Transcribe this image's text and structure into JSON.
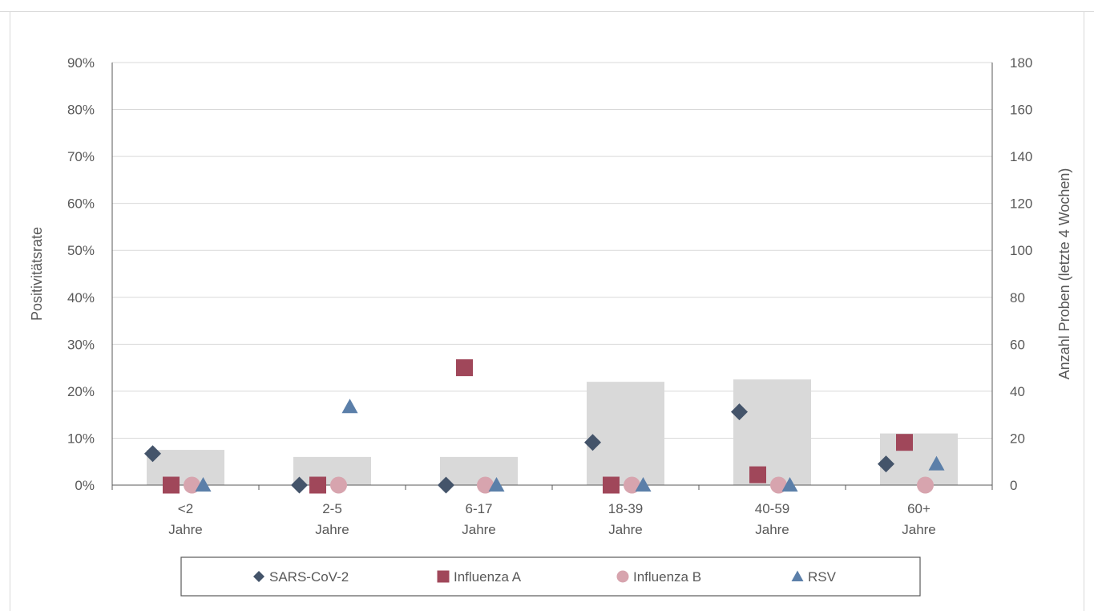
{
  "chart_data": {
    "type": "combo-bar-scatter",
    "categories": [
      "<2\nJahre",
      "2-5\nJahre",
      "6-17\nJahre",
      "18-39\nJahre",
      "40-59\nJahre",
      "60+\nJahre"
    ],
    "ylabel_left": "Positivitätsrate",
    "ylabel_right": "Anzahl Proben (letzte 4 Wochen)",
    "ylim_left": [
      0,
      0.9
    ],
    "ylim_right": [
      0,
      180
    ],
    "yticks_left": [
      "0%",
      "10%",
      "20%",
      "30%",
      "40%",
      "50%",
      "60%",
      "70%",
      "80%",
      "90%"
    ],
    "yticks_right": [
      "0",
      "20",
      "40",
      "60",
      "80",
      "100",
      "120",
      "140",
      "160",
      "180"
    ],
    "grid": true,
    "legend_position": "bottom",
    "bars": {
      "axis": "right",
      "color": "#d9d9d9",
      "values": [
        15,
        12,
        12,
        44,
        45,
        22
      ]
    },
    "series": [
      {
        "name": "SARS-CoV-2",
        "marker": "diamond",
        "color": "#44546a",
        "values": [
          0.067,
          0.0,
          0.0,
          0.091,
          0.156,
          0.045
        ]
      },
      {
        "name": "Influenza A",
        "marker": "square",
        "color": "#a0475a",
        "values": [
          0.0,
          0.0,
          0.25,
          0.0,
          0.022,
          0.091
        ]
      },
      {
        "name": "Influenza B",
        "marker": "circle",
        "color": "#d7a4ae",
        "values": [
          0.0,
          0.0,
          0.0,
          0.0,
          0.0,
          0.0
        ]
      },
      {
        "name": "RSV",
        "marker": "triangle",
        "color": "#5b7fa9",
        "values": [
          0.0,
          0.167,
          0.0,
          0.0,
          0.0,
          0.045
        ]
      }
    ]
  }
}
